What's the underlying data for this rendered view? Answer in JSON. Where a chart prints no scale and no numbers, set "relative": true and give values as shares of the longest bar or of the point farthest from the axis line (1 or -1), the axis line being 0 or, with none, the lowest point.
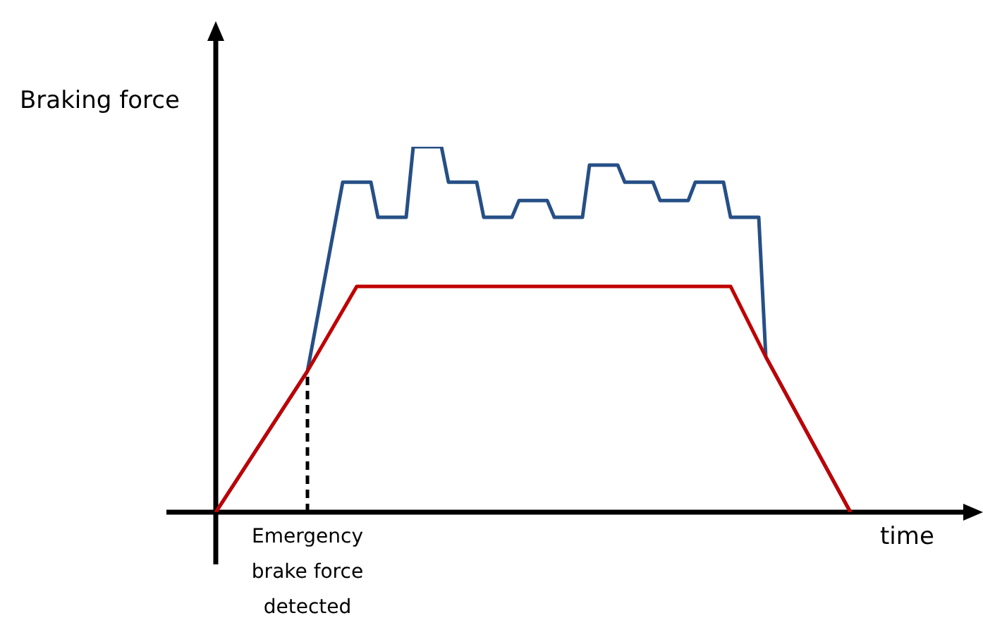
{
  "chart_data": {
    "type": "line",
    "relative": true,
    "xlabel": "time",
    "ylabel": "Braking force",
    "categories": [
      null,
      null,
      null,
      null,
      null,
      null,
      null,
      null,
      null,
      null,
      null,
      null,
      null,
      null,
      null,
      null,
      null,
      null,
      null,
      null,
      null,
      null,
      null,
      null,
      null,
      null,
      null,
      null,
      null,
      null,
      null,
      null,
      null,
      null,
      null,
      null,
      null,
      null,
      null,
      null,
      null,
      null,
      null,
      null,
      null,
      null,
      null,
      null,
      null,
      null,
      null,
      null,
      null,
      null,
      null,
      null,
      null,
      null,
      null,
      null,
      null,
      null,
      null,
      null,
      null,
      null,
      null,
      null,
      null,
      null,
      null,
      null,
      null,
      null,
      null,
      null,
      null,
      null,
      null,
      null,
      null,
      null,
      null,
      null,
      null,
      null,
      null,
      null,
      null,
      null,
      null
    ],
    "series": [
      {
        "color": "#c00000",
        "values": [
          0,
          null,
          null,
          null,
          null,
          null,
          null,
          null,
          null,
          null,
          null,
          null,
          null,
          0.386,
          null,
          null,
          null,
          null,
          null,
          null,
          0.618,
          null,
          null,
          null,
          null,
          null,
          null,
          null,
          null,
          null,
          null,
          null,
          null,
          null,
          null,
          null,
          null,
          null,
          null,
          null,
          null,
          null,
          null,
          null,
          null,
          null,
          null,
          null,
          null,
          null,
          null,
          null,
          null,
          null,
          null,
          null,
          null,
          null,
          null,
          null,
          null,
          null,
          null,
          null,
          null,
          null,
          null,
          null,
          null,
          null,
          null,
          null,
          null,
          0.618,
          null,
          null,
          null,
          null,
          0.425,
          null,
          null,
          null,
          null,
          null,
          null,
          null,
          null,
          null,
          null,
          null,
          0
        ]
      },
      {
        "color": "#264f86",
        "values": [
          0,
          null,
          null,
          null,
          null,
          null,
          null,
          null,
          null,
          null,
          null,
          null,
          null,
          0.386,
          null,
          null,
          null,
          null,
          0.903,
          null,
          null,
          null,
          0.903,
          0.807,
          null,
          null,
          null,
          0.807,
          1,
          null,
          null,
          null,
          1,
          0.903,
          null,
          null,
          null,
          0.903,
          0.807,
          null,
          null,
          null,
          0.807,
          0.853,
          null,
          null,
          null,
          0.853,
          0.807,
          null,
          null,
          null,
          0.807,
          0.95,
          null,
          null,
          null,
          0.95,
          0.903,
          null,
          null,
          null,
          0.903,
          0.853,
          null,
          null,
          null,
          0.853,
          0.903,
          null,
          null,
          null,
          0.903,
          0.807,
          null,
          null,
          null,
          0.807,
          0.425,
          null,
          null,
          null,
          null,
          null,
          null,
          null,
          null,
          null,
          null,
          null,
          0
        ]
      }
    ],
    "annotations": [
      {
        "text": "Emergency brake force detected",
        "y": 0.386
      }
    ]
  }
}
